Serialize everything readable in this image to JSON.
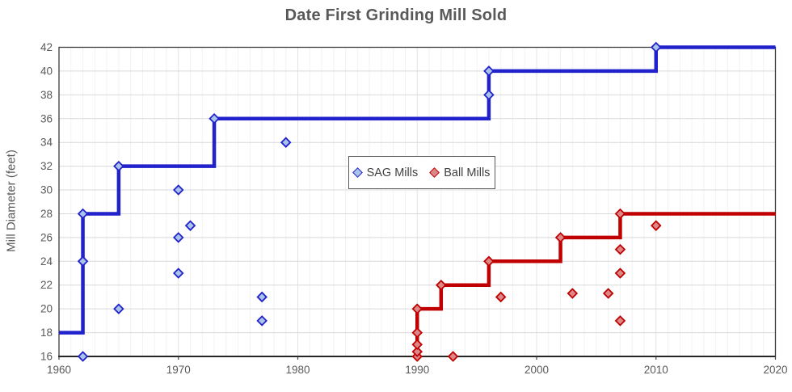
{
  "title": "Date First Grinding Mill Sold",
  "axes": {
    "y_label": "Mill Diameter (feet)",
    "x_ticks": [
      1960,
      1970,
      1980,
      1990,
      2000,
      2010,
      2020
    ],
    "y_ticks": [
      16,
      18,
      20,
      22,
      24,
      26,
      28,
      30,
      32,
      34,
      36,
      38,
      40,
      42
    ]
  },
  "colors": {
    "title_text": "#595959",
    "axis_text": "#595959",
    "grid_minor_vertical": "#F2F2F2",
    "grid_decade_vertical": "#E4E4E4",
    "grid_horizontal": "#D9D9D9",
    "plot_border": "#3B3B3B",
    "tick_mark": "#404040"
  },
  "legend": {
    "items": [
      {
        "label": "SAG Mills",
        "swatch": "blue-diamond-icon"
      },
      {
        "label": "Ball Mills",
        "swatch": "red-diamond-icon"
      }
    ]
  },
  "chart_data": {
    "type": "scatter",
    "title": "Date First Grinding Mill Sold",
    "xlabel": "",
    "ylabel": "Mill Diameter (feet)",
    "xlim": [
      1960,
      2020
    ],
    "ylim": [
      16,
      42
    ],
    "x_tick_step": 10,
    "y_tick_step": 2,
    "grid": true,
    "legend_position": "inside-upper-middle",
    "marker": "diamond",
    "series": [
      {
        "name": "SAG Mills",
        "line_color": "#2222CC",
        "marker_fill": "#A9C4E8",
        "points": [
          [
            1962,
            16
          ],
          [
            1962,
            24
          ],
          [
            1962,
            28
          ],
          [
            1965,
            20
          ],
          [
            1965,
            32
          ],
          [
            1970,
            23
          ],
          [
            1970,
            26
          ],
          [
            1970,
            30
          ],
          [
            1971,
            27
          ],
          [
            1973,
            36
          ],
          [
            1977,
            19
          ],
          [
            1977,
            21
          ],
          [
            1979,
            34
          ],
          [
            1996,
            38
          ],
          [
            1996,
            40
          ],
          [
            2010,
            42
          ]
        ],
        "step_line": [
          [
            1960,
            18
          ],
          [
            1962,
            18
          ],
          [
            1962,
            28
          ],
          [
            1965,
            28
          ],
          [
            1965,
            32
          ],
          [
            1973,
            32
          ],
          [
            1973,
            36
          ],
          [
            1996,
            36
          ],
          [
            1996,
            40
          ],
          [
            2010,
            40
          ],
          [
            2010,
            42
          ],
          [
            2020,
            42
          ]
        ]
      },
      {
        "name": "Ball Mills",
        "line_color": "#C00000",
        "marker_fill": "#DD8888",
        "points": [
          [
            1990,
            16
          ],
          [
            1990,
            16.4
          ],
          [
            1990,
            17
          ],
          [
            1990,
            18
          ],
          [
            1990,
            20
          ],
          [
            1992,
            22
          ],
          [
            1993,
            16
          ],
          [
            1996,
            24
          ],
          [
            1997,
            21
          ],
          [
            2002,
            26
          ],
          [
            2003,
            21.3
          ],
          [
            2006,
            21.3
          ],
          [
            2007,
            19
          ],
          [
            2007,
            23
          ],
          [
            2007,
            25
          ],
          [
            2007,
            28
          ],
          [
            2010,
            27
          ]
        ],
        "step_line": [
          [
            1990,
            16.4
          ],
          [
            1990,
            20
          ],
          [
            1992,
            20
          ],
          [
            1992,
            22
          ],
          [
            1996,
            22
          ],
          [
            1996,
            24
          ],
          [
            2002,
            24
          ],
          [
            2002,
            26
          ],
          [
            2007,
            26
          ],
          [
            2007,
            28
          ],
          [
            2020,
            28
          ]
        ]
      }
    ]
  }
}
